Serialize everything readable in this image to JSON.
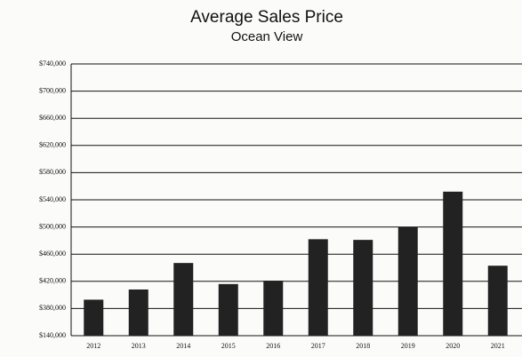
{
  "chart_data": {
    "type": "bar",
    "title": "Average Sales Price",
    "subtitle": "Ocean View",
    "categories": [
      "2012",
      "2013",
      "2014",
      "2015",
      "2016",
      "2017",
      "2018",
      "2019",
      "2020",
      "2021"
    ],
    "values": [
      393000,
      408000,
      447000,
      416000,
      421000,
      482000,
      481000,
      500000,
      552000,
      443000
    ],
    "color": "#222222",
    "ylim": [
      140000,
      740000
    ],
    "yticks": [
      {
        "value": 140000,
        "label": "$140,000"
      },
      {
        "value": 380000,
        "label": "$380,000"
      },
      {
        "value": 420000,
        "label": "$420,000"
      },
      {
        "value": 460000,
        "label": "$460,000"
      },
      {
        "value": 500000,
        "label": "$500,000"
      },
      {
        "value": 540000,
        "label": "$540,000"
      },
      {
        "value": 580000,
        "label": "$580,000"
      },
      {
        "value": 620000,
        "label": "$620,000"
      },
      {
        "value": 660000,
        "label": "$660,000"
      },
      {
        "value": 700000,
        "label": "$700,000"
      },
      {
        "value": 740000,
        "label": "$740,000"
      }
    ],
    "grid": true
  }
}
